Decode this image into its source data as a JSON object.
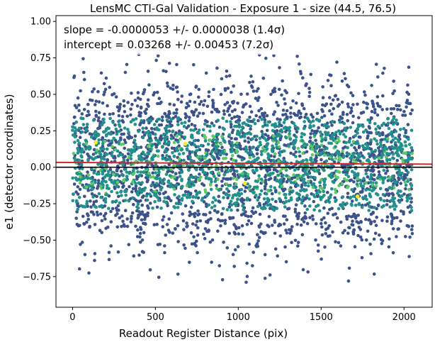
{
  "chart_data": {
    "type": "scatter",
    "title": "LensMC CTI-Gal Validation - Exposure 1 - size (44.5, 76.5)",
    "xlabel": "Readout Register Distance (pix)",
    "ylabel": "e1 (detector coordinates)",
    "xlim": [
      -100,
      2170
    ],
    "ylim": [
      -0.96,
      1.04
    ],
    "xticks": [
      0,
      500,
      1000,
      1500,
      2000
    ],
    "xtick_labels": [
      "0",
      "500",
      "1000",
      "1500",
      "2000"
    ],
    "yticks": [
      -0.75,
      -0.5,
      -0.25,
      0.0,
      0.25,
      0.5,
      0.75,
      1.0
    ],
    "ytick_labels": [
      "−0.75",
      "−0.50",
      "−0.25",
      "0.00",
      "0.25",
      "0.50",
      "0.75",
      "1.00"
    ],
    "grid": false,
    "annotations": {
      "slope": "slope = -0.0000053 +/- 0.0000038 (1.4σ)",
      "intercept": "intercept = 0.03268 +/- 0.00453 (7.2σ)"
    },
    "fit_line": {
      "slope": -5.3e-06,
      "intercept": 0.03268,
      "color": "#d62728"
    },
    "zero_line": {
      "y": 0.0,
      "color": "#000000"
    },
    "scatter": {
      "x_range": [
        0,
        2050
      ],
      "y_center": 0.02,
      "y_spread_sd": 0.26,
      "y_extent": [
        -0.87,
        0.79
      ],
      "approx_point_count": 9000,
      "colormap": [
        "#3b528b",
        "#21918c",
        "#5ec962",
        "#fde725"
      ],
      "highlight_points": [
        {
          "x": 680,
          "y": 0.16
        },
        {
          "x": 1720,
          "y": -0.2
        },
        {
          "x": 1040,
          "y": -0.11
        },
        {
          "x": 140,
          "y": 0.17
        }
      ]
    }
  }
}
